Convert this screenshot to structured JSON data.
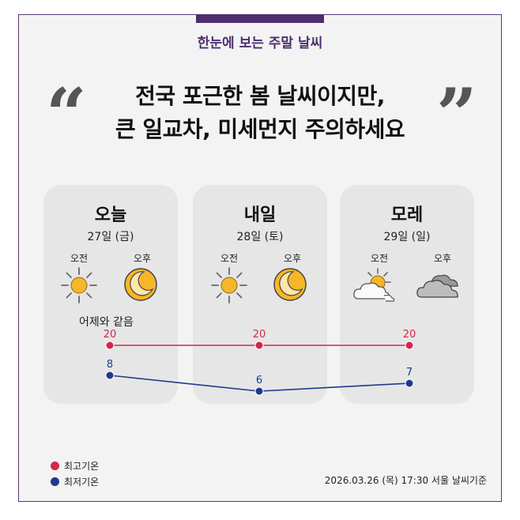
{
  "header": {
    "subtitle": "한눈에 보는 주말 날씨",
    "headline_line1": "전국 포근한 봄 날씨이지만,",
    "headline_line2": "큰 일교차, 미세먼지 주의하세요",
    "quote_open": "“",
    "quote_close": "”"
  },
  "days": [
    {
      "name": "오늘",
      "date": "27일 (금)",
      "am_label": "오전",
      "pm_label": "오후",
      "am_icon": "sun-icon",
      "pm_icon": "moon-icon",
      "note": "어제와 같음"
    },
    {
      "name": "내일",
      "date": "28일 (토)",
      "am_label": "오전",
      "pm_label": "오후",
      "am_icon": "sun-icon",
      "pm_icon": "moon-icon"
    },
    {
      "name": "모레",
      "date": "29일 (일)",
      "am_label": "오전",
      "pm_label": "오후",
      "am_icon": "partly-cloudy-icon",
      "pm_icon": "cloud-icon"
    }
  ],
  "chart_data": {
    "type": "line",
    "categories": [
      "오늘",
      "내일",
      "모레"
    ],
    "series": [
      {
        "name": "최고기온",
        "values": [
          20,
          20,
          20
        ],
        "color": "#d2284a"
      },
      {
        "name": "최저기온",
        "values": [
          8,
          6,
          7
        ],
        "color": "#1f3a8a"
      }
    ]
  },
  "legend": {
    "high_label": "최고기온",
    "low_label": "최저기온",
    "high_color": "#d2284a",
    "low_color": "#1f3a8a"
  },
  "footer": {
    "timestamp": "2026.03.26 (목) 17:30 서울 날씨기준"
  }
}
